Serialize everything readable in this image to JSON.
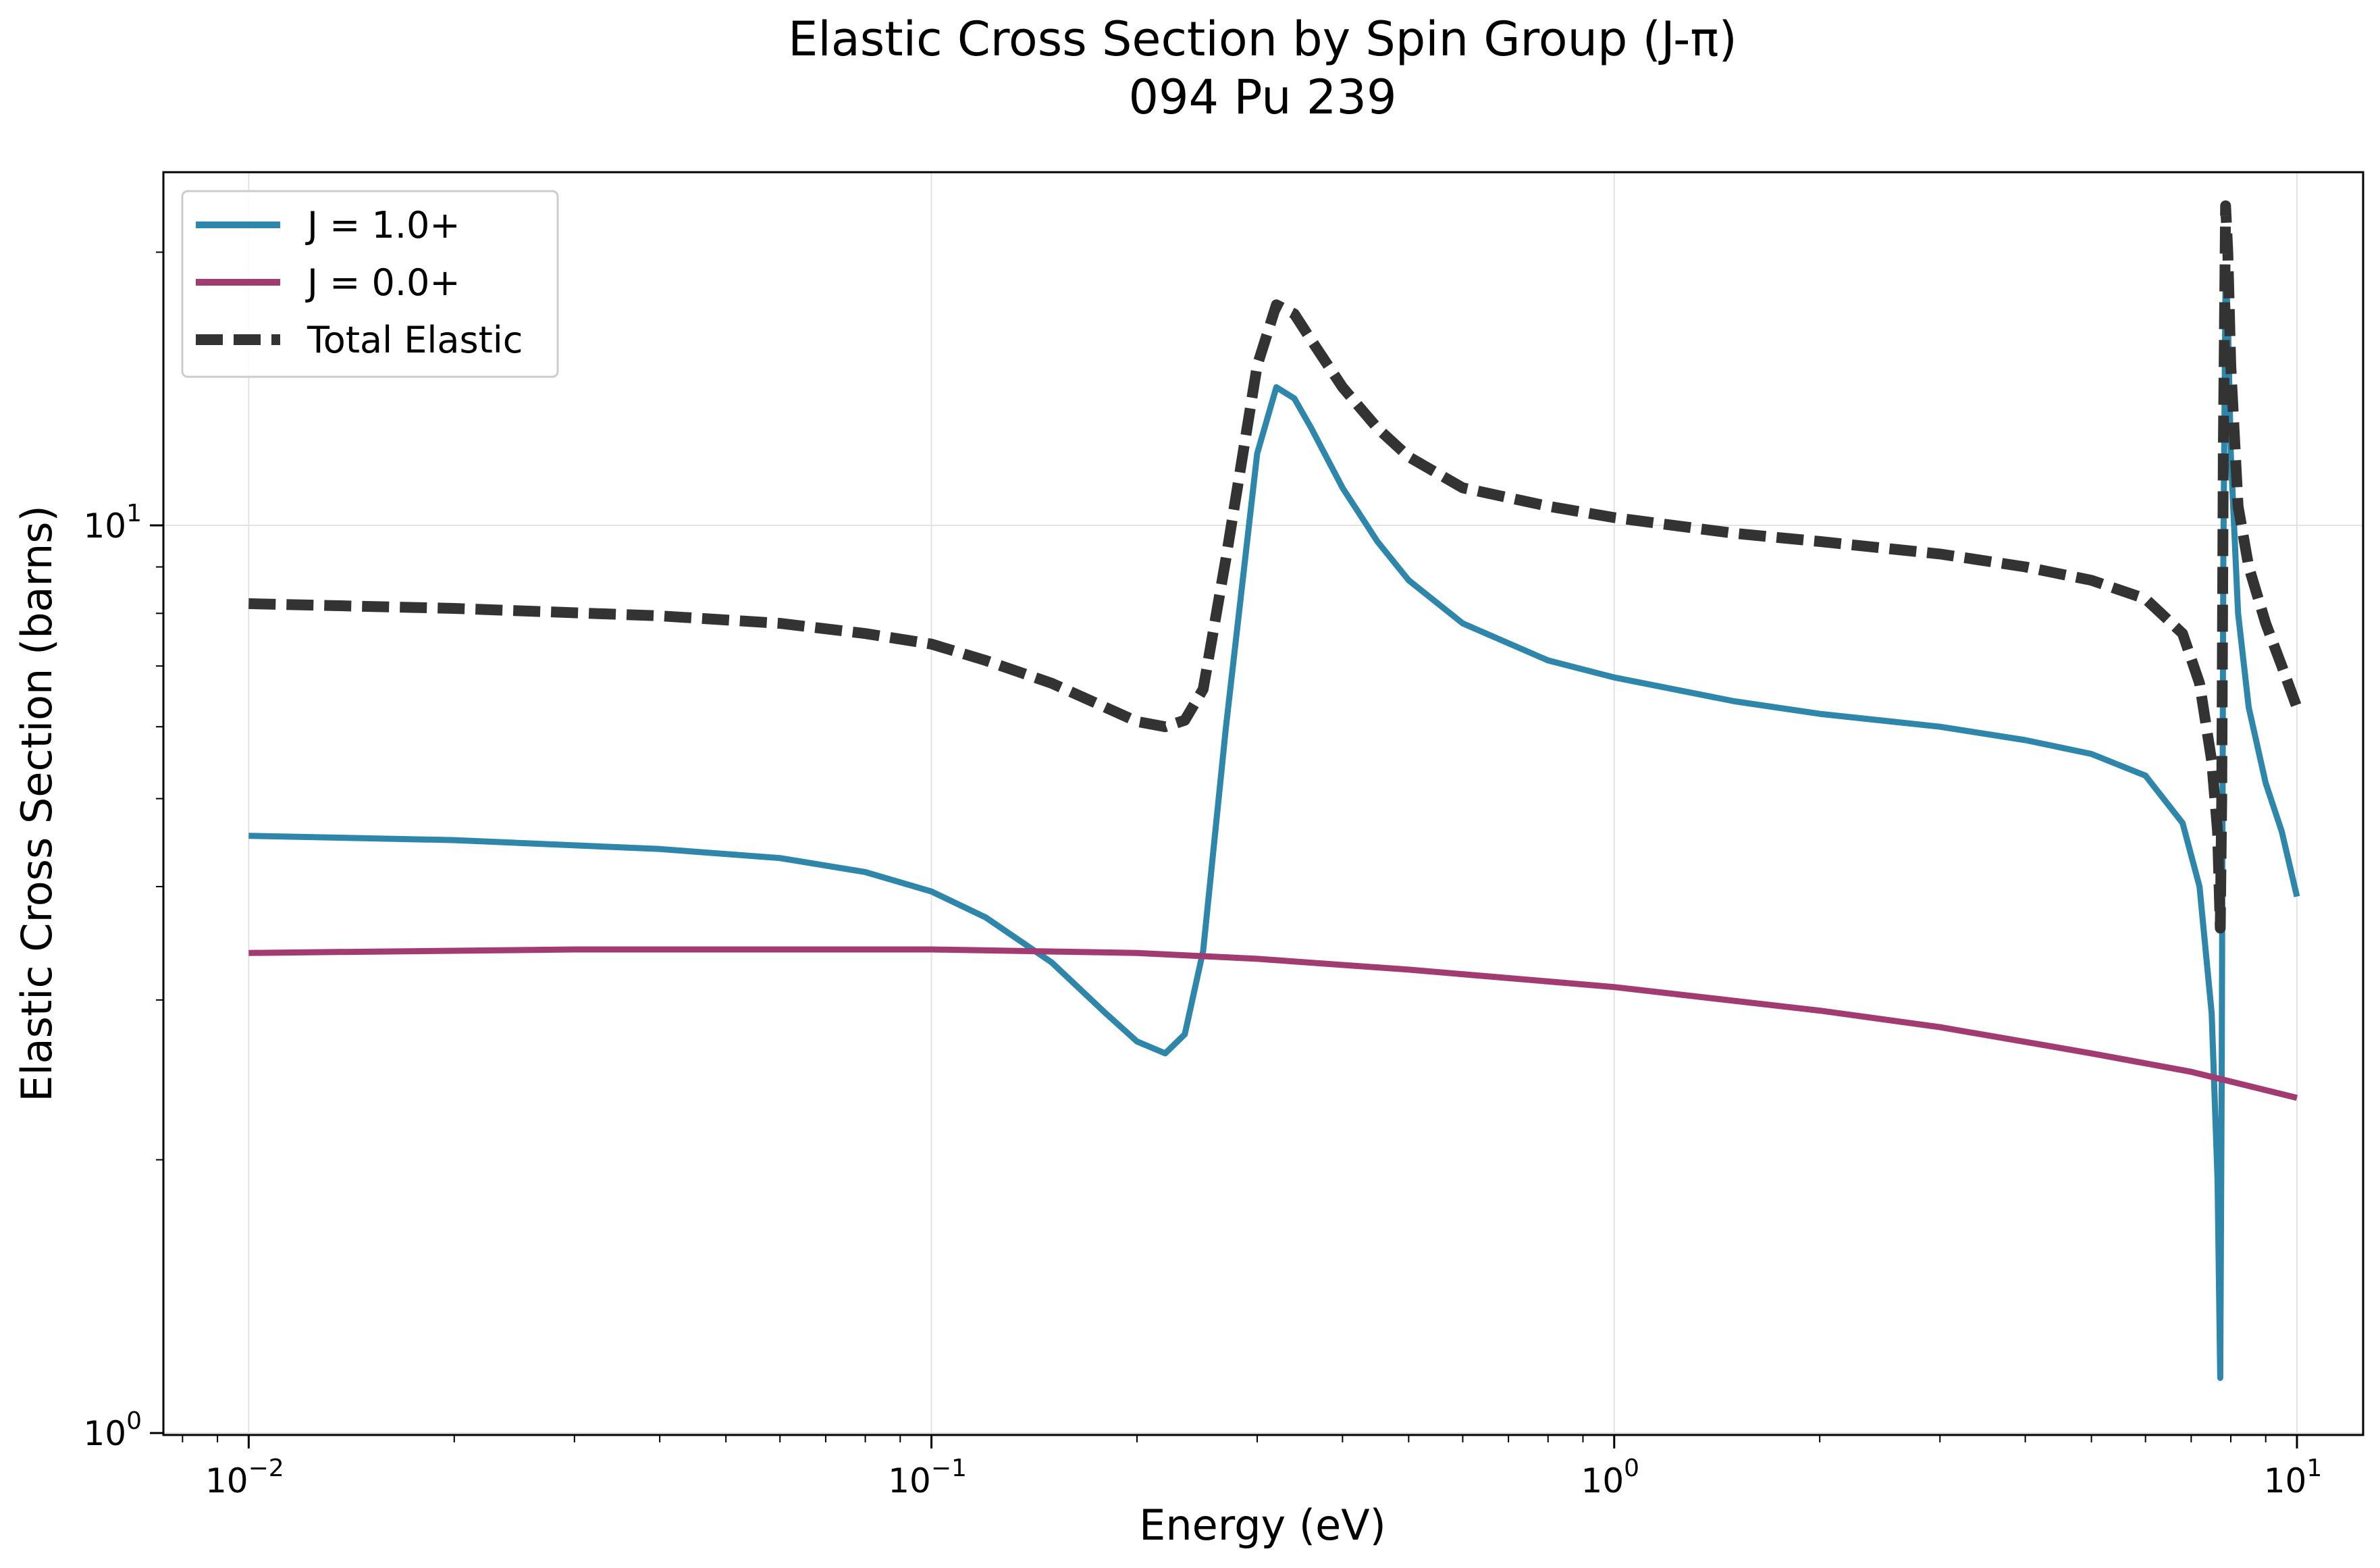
{
  "chart_data": {
    "type": "line",
    "title": "Elastic Cross Section by Spin Group (J-π)",
    "subtitle": "094 Pu 239",
    "xlabel": "Energy (eV)",
    "ylabel": "Elastic Cross Section (barns)",
    "xscale": "log",
    "yscale": "log",
    "xlim": [
      0.0075,
      12.5
    ],
    "ylim": [
      0.995,
      24.5
    ],
    "x_ticks": [
      {
        "value": 0.01,
        "base": "10",
        "exp": "−2"
      },
      {
        "value": 0.1,
        "base": "10",
        "exp": "−1"
      },
      {
        "value": 1,
        "base": "10",
        "exp": "0"
      },
      {
        "value": 10,
        "base": "10",
        "exp": "1"
      }
    ],
    "y_ticks": [
      {
        "value": 1,
        "base": "10",
        "exp": "0"
      },
      {
        "value": 10,
        "base": "10",
        "exp": "1"
      }
    ],
    "grid": true,
    "legend_position": "top-left",
    "series": [
      {
        "name": "J = 1.0+",
        "color": "#2e86ab",
        "style": "solid",
        "x": [
          0.01,
          0.02,
          0.04,
          0.06,
          0.08,
          0.1,
          0.12,
          0.15,
          0.18,
          0.2,
          0.22,
          0.235,
          0.25,
          0.27,
          0.3,
          0.32,
          0.34,
          0.36,
          0.4,
          0.45,
          0.5,
          0.6,
          0.8,
          1.0,
          1.5,
          2.0,
          3.0,
          4.0,
          5.0,
          6.0,
          6.8,
          7.2,
          7.5,
          7.65,
          7.72,
          7.76,
          7.8,
          7.86,
          7.92,
          8.0,
          8.2,
          8.5,
          9.0,
          9.5,
          10.0
        ],
        "y": [
          4.55,
          4.5,
          4.4,
          4.3,
          4.15,
          3.95,
          3.7,
          3.3,
          2.9,
          2.7,
          2.62,
          2.75,
          3.4,
          6.0,
          12.0,
          14.2,
          13.8,
          12.8,
          11.0,
          9.6,
          8.7,
          7.8,
          7.1,
          6.8,
          6.4,
          6.2,
          6.0,
          5.8,
          5.6,
          5.3,
          4.7,
          4.0,
          2.9,
          1.9,
          1.15,
          2.5,
          9.0,
          19.0,
          17.0,
          12.0,
          8.0,
          6.3,
          5.2,
          4.6,
          3.9
        ]
      },
      {
        "name": "J = 0.0+",
        "color": "#a23b72",
        "style": "solid",
        "x": [
          0.01,
          0.03,
          0.1,
          0.2,
          0.3,
          0.5,
          1.0,
          2.0,
          3.0,
          5.0,
          7.0,
          10.0
        ],
        "y": [
          3.38,
          3.41,
          3.41,
          3.38,
          3.33,
          3.24,
          3.1,
          2.92,
          2.8,
          2.62,
          2.5,
          2.34
        ]
      },
      {
        "name": "Total Elastic",
        "color": "#333333",
        "style": "dashed",
        "x": [
          0.01,
          0.02,
          0.04,
          0.06,
          0.08,
          0.1,
          0.12,
          0.15,
          0.18,
          0.2,
          0.22,
          0.235,
          0.25,
          0.27,
          0.3,
          0.32,
          0.34,
          0.36,
          0.4,
          0.45,
          0.5,
          0.6,
          0.8,
          1.0,
          1.5,
          2.0,
          3.0,
          4.0,
          5.0,
          6.0,
          6.8,
          7.2,
          7.5,
          7.65,
          7.72,
          7.76,
          7.8,
          7.86,
          7.92,
          8.0,
          8.2,
          8.5,
          9.0,
          9.5,
          10.0
        ],
        "y": [
          8.2,
          8.1,
          7.95,
          7.8,
          7.6,
          7.4,
          7.1,
          6.7,
          6.3,
          6.08,
          6.0,
          6.1,
          6.6,
          9.2,
          15.0,
          17.5,
          17.1,
          16.0,
          14.2,
          12.8,
          11.9,
          11.0,
          10.5,
          10.2,
          9.8,
          9.6,
          9.3,
          9.0,
          8.7,
          8.3,
          7.6,
          6.7,
          5.5,
          4.6,
          3.6,
          5.0,
          12.0,
          22.5,
          20.0,
          15.0,
          10.5,
          9.0,
          7.8,
          7.0,
          6.3
        ]
      }
    ]
  }
}
